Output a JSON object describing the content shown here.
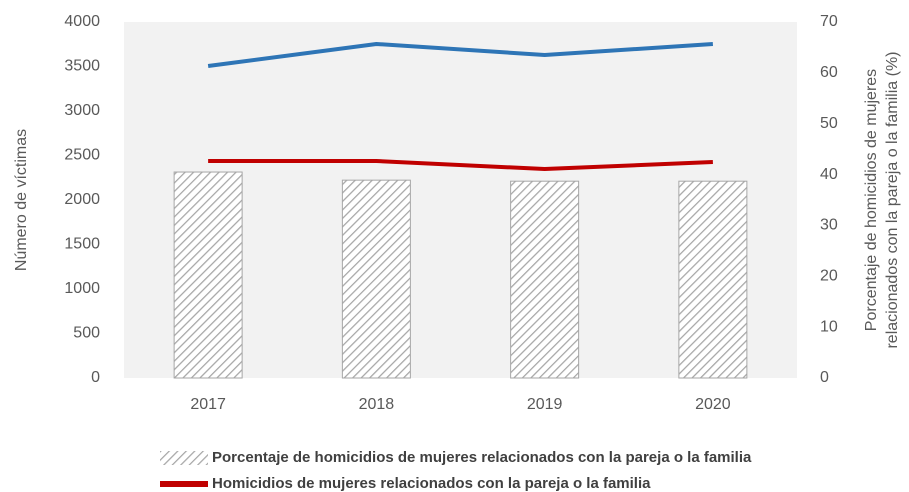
{
  "chart_data": {
    "type": "bar_line",
    "categories": [
      "2017",
      "2018",
      "2019",
      "2020"
    ],
    "y_label": "Número de víctimas",
    "y2_label": [
      "Porcentaje de homicidios de mujeres",
      "relacionados con la pareja o la familia (%)"
    ],
    "ylim": [
      0,
      4000
    ],
    "yticks": [
      0,
      500,
      1000,
      1500,
      2000,
      2500,
      3000,
      3500,
      4000
    ],
    "y2lim": [
      0,
      70
    ],
    "y2ticks": [
      0,
      10,
      20,
      30,
      40,
      50,
      60,
      70
    ],
    "series": [
      {
        "name": "Porcentaje de homicidios de mujeres relacionados con la pareja o la familia",
        "kind": "bar",
        "color": "#a6a6a6",
        "axis": "y2",
        "values": [
          40.5,
          38.9,
          38.7,
          38.7
        ]
      },
      {
        "name": "Homicidios de mujeres relacionados con la pareja o la familia",
        "kind": "line",
        "color": "#c00000",
        "values": [
          2438,
          2438,
          2348,
          2427
        ]
      },
      {
        "kind": "line",
        "color": "#2e75b6",
        "values": [
          3506,
          3753,
          3629,
          3753
        ]
      }
    ]
  }
}
